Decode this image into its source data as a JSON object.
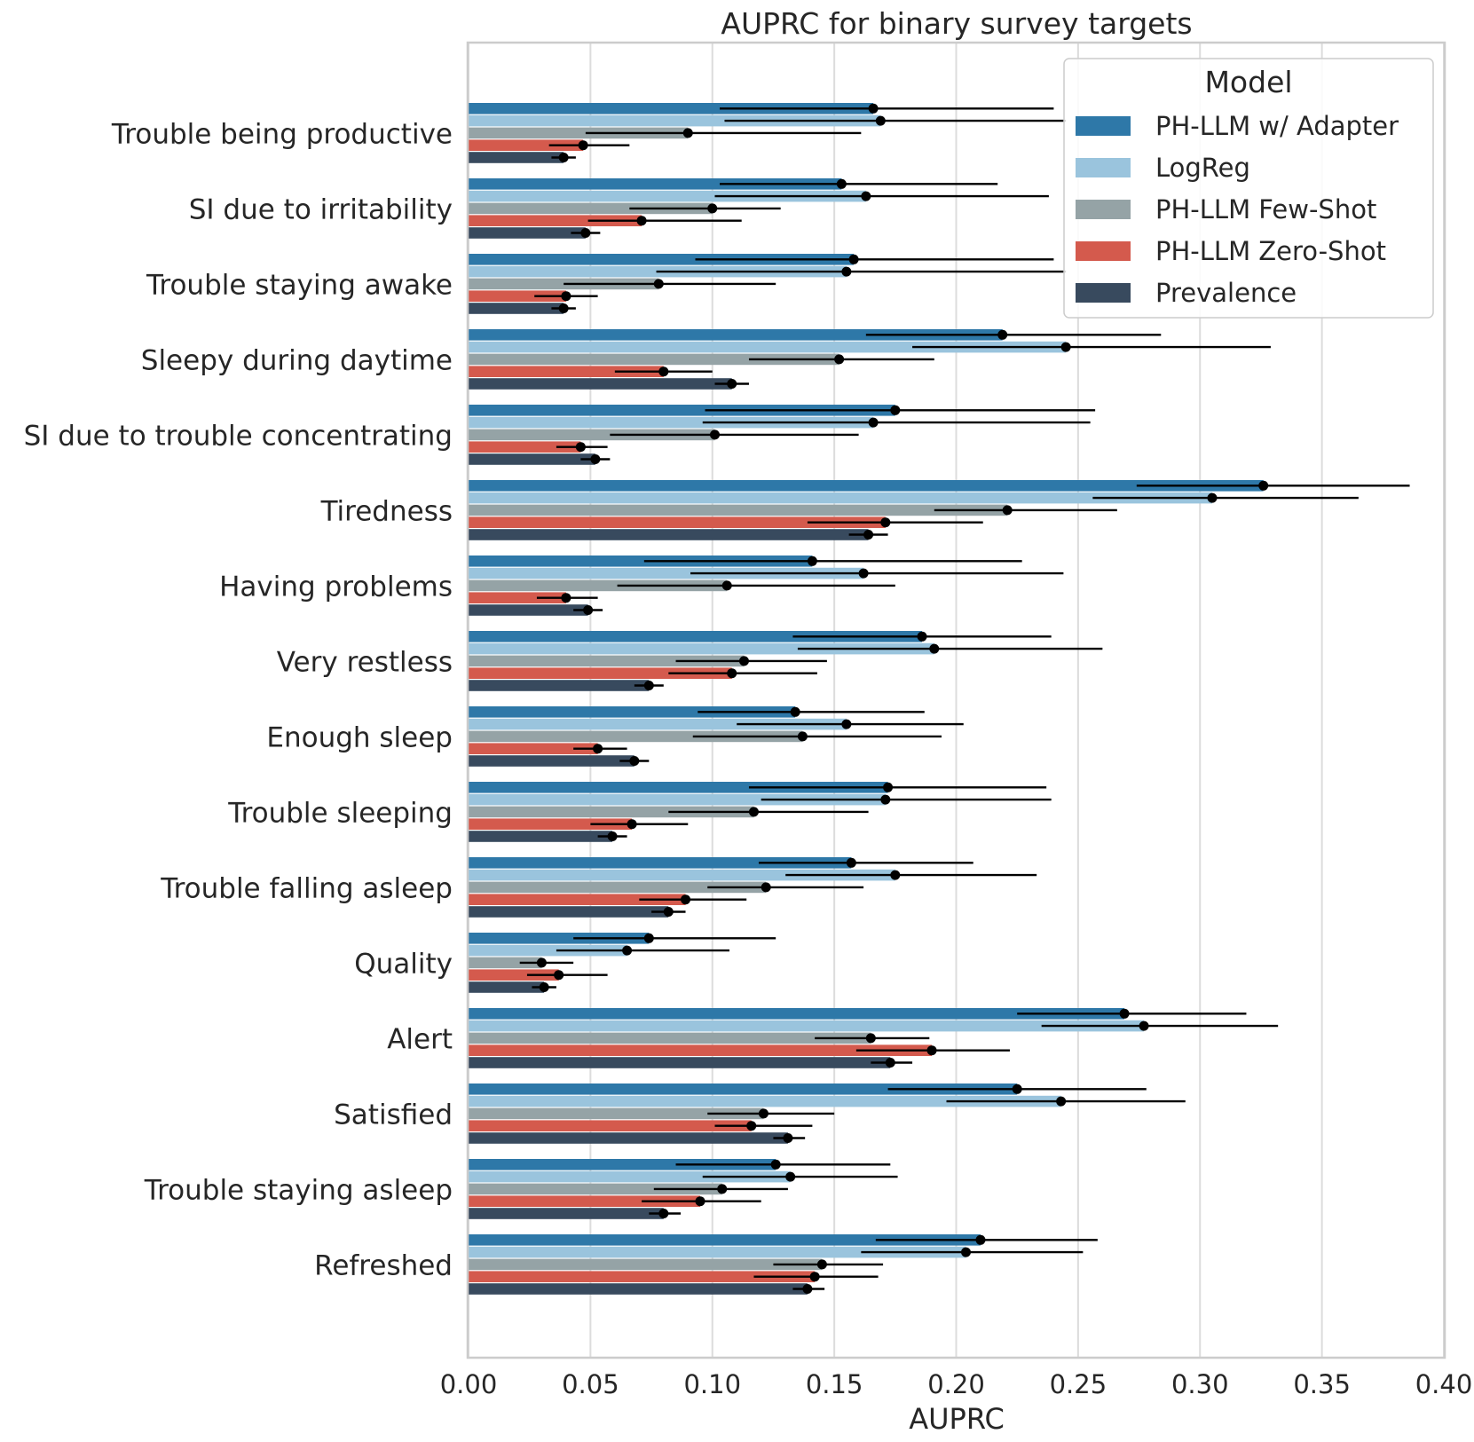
{
  "chart_data": {
    "type": "bar",
    "orientation": "horizontal",
    "title": "AUPRC for binary survey targets",
    "xlabel": "AUPRC",
    "ylabel": "",
    "xlim": [
      0,
      0.4
    ],
    "xticks": [
      "0.00",
      "0.05",
      "0.10",
      "0.15",
      "0.20",
      "0.25",
      "0.30",
      "0.35",
      "0.40"
    ],
    "grid": true,
    "legend_title": "Model",
    "legend_position": "top-right",
    "categories": [
      "Trouble being productive",
      "SI due to irritability",
      "Trouble staying awake",
      "Sleepy during daytime",
      "SI due to trouble concentrating",
      "Tiredness",
      "Having problems",
      "Very restless",
      "Enough sleep",
      "Trouble sleeping",
      "Trouble falling asleep",
      "Quality",
      "Alert",
      "Satisfied",
      "Trouble staying asleep",
      "Refreshed"
    ],
    "series": [
      {
        "name": "PH-LLM w/ Adapter",
        "color": "#2e78a8",
        "values": [
          0.166,
          0.153,
          0.158,
          0.219,
          0.175,
          0.326,
          0.141,
          0.186,
          0.134,
          0.172,
          0.157,
          0.074,
          0.269,
          0.225,
          0.126,
          0.21
        ],
        "ci_low": [
          0.103,
          0.103,
          0.093,
          0.163,
          0.097,
          0.274,
          0.072,
          0.133,
          0.094,
          0.115,
          0.119,
          0.043,
          0.225,
          0.172,
          0.085,
          0.167
        ],
        "ci_high": [
          0.24,
          0.217,
          0.24,
          0.284,
          0.257,
          0.386,
          0.227,
          0.239,
          0.187,
          0.237,
          0.207,
          0.126,
          0.319,
          0.278,
          0.173,
          0.258
        ]
      },
      {
        "name": "LogReg",
        "color": "#9ac4dd",
        "values": [
          0.169,
          0.163,
          0.155,
          0.245,
          0.166,
          0.305,
          0.162,
          0.191,
          0.155,
          0.171,
          0.175,
          0.065,
          0.277,
          0.243,
          0.132,
          0.204
        ],
        "ci_low": [
          0.105,
          0.101,
          0.077,
          0.182,
          0.096,
          0.256,
          0.091,
          0.135,
          0.11,
          0.12,
          0.13,
          0.036,
          0.235,
          0.196,
          0.096,
          0.161
        ],
        "ci_high": [
          0.245,
          0.238,
          0.245,
          0.329,
          0.255,
          0.365,
          0.244,
          0.26,
          0.203,
          0.239,
          0.233,
          0.107,
          0.332,
          0.294,
          0.176,
          0.252
        ]
      },
      {
        "name": "PH-LLM Few-Shot",
        "color": "#95a3a6",
        "values": [
          0.09,
          0.1,
          0.078,
          0.152,
          0.101,
          0.221,
          0.106,
          0.113,
          0.137,
          0.117,
          0.122,
          0.03,
          0.165,
          0.121,
          0.104,
          0.145
        ],
        "ci_low": [
          0.048,
          0.066,
          0.039,
          0.115,
          0.058,
          0.191,
          0.061,
          0.085,
          0.092,
          0.082,
          0.098,
          0.021,
          0.142,
          0.098,
          0.076,
          0.125
        ],
        "ci_high": [
          0.161,
          0.128,
          0.126,
          0.191,
          0.16,
          0.266,
          0.175,
          0.147,
          0.194,
          0.164,
          0.162,
          0.043,
          0.189,
          0.15,
          0.131,
          0.17
        ]
      },
      {
        "name": "PH-LLM Zero-Shot",
        "color": "#d45a4d",
        "values": [
          0.047,
          0.071,
          0.04,
          0.08,
          0.046,
          0.171,
          0.04,
          0.108,
          0.053,
          0.067,
          0.089,
          0.037,
          0.19,
          0.116,
          0.095,
          0.142
        ],
        "ci_low": [
          0.033,
          0.049,
          0.027,
          0.06,
          0.036,
          0.139,
          0.028,
          0.082,
          0.043,
          0.05,
          0.07,
          0.024,
          0.159,
          0.101,
          0.071,
          0.117
        ],
        "ci_high": [
          0.066,
          0.112,
          0.053,
          0.1,
          0.057,
          0.211,
          0.053,
          0.143,
          0.065,
          0.09,
          0.114,
          0.057,
          0.222,
          0.141,
          0.12,
          0.168
        ]
      },
      {
        "name": "Prevalence",
        "color": "#384a5e",
        "values": [
          0.039,
          0.048,
          0.039,
          0.108,
          0.052,
          0.164,
          0.049,
          0.074,
          0.068,
          0.059,
          0.082,
          0.031,
          0.173,
          0.131,
          0.08,
          0.139
        ],
        "ci_low": [
          0.034,
          0.042,
          0.034,
          0.101,
          0.046,
          0.156,
          0.043,
          0.068,
          0.062,
          0.053,
          0.075,
          0.026,
          0.165,
          0.125,
          0.074,
          0.133
        ],
        "ci_high": [
          0.044,
          0.054,
          0.044,
          0.115,
          0.058,
          0.172,
          0.055,
          0.08,
          0.074,
          0.065,
          0.089,
          0.036,
          0.182,
          0.138,
          0.087,
          0.146
        ]
      }
    ]
  }
}
